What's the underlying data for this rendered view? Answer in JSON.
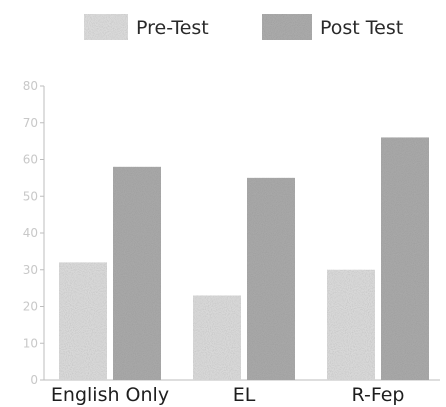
{
  "chart_data": {
    "type": "bar",
    "categories": [
      "English Only",
      "EL",
      "R-Fep"
    ],
    "series": [
      {
        "name": "Pre-Test",
        "values": [
          32,
          23,
          30
        ],
        "color": "#d8d8d8",
        "pattern": "light-stipple"
      },
      {
        "name": "Post Test",
        "values": [
          58,
          55,
          66
        ],
        "color": "#a8a8a8",
        "pattern": "dark-stipple"
      }
    ],
    "ylim": [
      0,
      80
    ],
    "yticks": [
      0,
      10,
      20,
      30,
      40,
      50,
      60,
      70,
      80
    ],
    "title": "",
    "xlabel": "",
    "ylabel": "",
    "legend_position": "top-center",
    "grid": false
  }
}
